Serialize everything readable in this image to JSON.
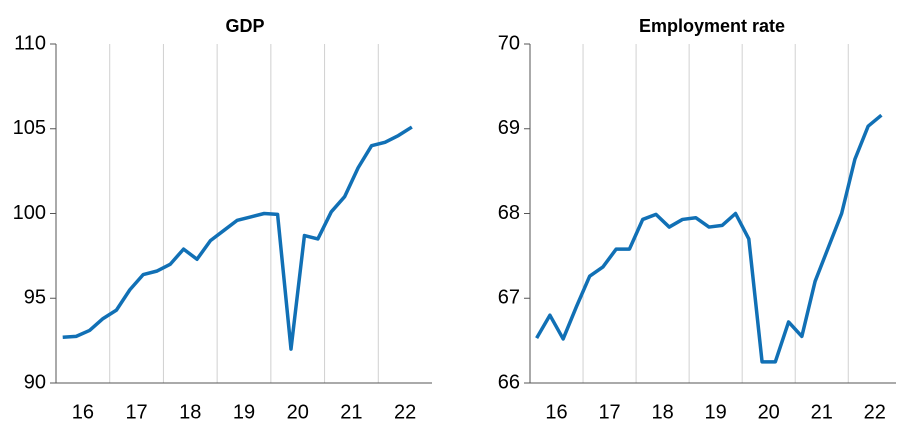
{
  "chart_data": [
    {
      "type": "line",
      "title": "GDP",
      "x": [
        2016.125,
        2016.375,
        2016.625,
        2016.875,
        2017.125,
        2017.375,
        2017.625,
        2017.875,
        2018.125,
        2018.375,
        2018.625,
        2018.875,
        2019.125,
        2019.375,
        2019.625,
        2019.875,
        2020.125,
        2020.375,
        2020.625,
        2020.875,
        2021.125,
        2021.375,
        2021.625,
        2021.875,
        2022.125,
        2022.375,
        2022.625
      ],
      "series": [
        {
          "name": "GDP",
          "color": "#1170b5",
          "values": [
            92.7,
            92.75,
            93.1,
            93.8,
            94.3,
            95.5,
            96.4,
            96.6,
            97.0,
            97.9,
            97.3,
            98.4,
            99.0,
            99.6,
            99.8,
            100.0,
            99.95,
            92.0,
            98.7,
            98.5,
            100.1,
            101.0,
            102.7,
            104.0,
            104.2,
            104.6,
            105.1
          ]
        }
      ],
      "xlim": [
        2016,
        2023
      ],
      "xticks": [
        {
          "value": 2016.5,
          "label": "16"
        },
        {
          "value": 2017.5,
          "label": "17"
        },
        {
          "value": 2018.5,
          "label": "18"
        },
        {
          "value": 2019.5,
          "label": "19"
        },
        {
          "value": 2020.5,
          "label": "20"
        },
        {
          "value": 2021.5,
          "label": "21"
        },
        {
          "value": 2022.5,
          "label": "22"
        }
      ],
      "xgrid": [
        2017,
        2018,
        2019,
        2020,
        2021,
        2022
      ],
      "ylim": [
        90,
        110
      ],
      "yticks": [
        90,
        95,
        100,
        105,
        110
      ]
    },
    {
      "type": "line",
      "title": "Employment rate",
      "x": [
        2016.125,
        2016.375,
        2016.625,
        2016.875,
        2017.125,
        2017.375,
        2017.625,
        2017.875,
        2018.125,
        2018.375,
        2018.625,
        2018.875,
        2019.125,
        2019.375,
        2019.625,
        2019.875,
        2020.125,
        2020.375,
        2020.625,
        2020.875,
        2021.125,
        2021.375,
        2021.625,
        2021.875,
        2022.125,
        2022.375,
        2022.625
      ],
      "series": [
        {
          "name": "Employment rate",
          "color": "#1170b5",
          "values": [
            66.53,
            66.8,
            66.52,
            66.9,
            67.26,
            67.37,
            67.58,
            67.58,
            67.93,
            67.99,
            67.84,
            67.93,
            67.95,
            67.84,
            67.86,
            68.0,
            67.7,
            66.25,
            66.25,
            66.72,
            66.55,
            67.2,
            67.6,
            68.0,
            68.64,
            69.03,
            69.16
          ]
        }
      ],
      "xlim": [
        2016,
        2022.9
      ],
      "xticks": [
        {
          "value": 2016.5,
          "label": "16"
        },
        {
          "value": 2017.5,
          "label": "17"
        },
        {
          "value": 2018.5,
          "label": "18"
        },
        {
          "value": 2019.5,
          "label": "19"
        },
        {
          "value": 2020.5,
          "label": "20"
        },
        {
          "value": 2021.5,
          "label": "21"
        },
        {
          "value": 2022.5,
          "label": "22"
        }
      ],
      "xgrid": [
        2017,
        2018,
        2019,
        2020,
        2021,
        2022
      ],
      "ylim": [
        66,
        70
      ],
      "yticks": [
        66,
        67,
        68,
        69,
        70
      ]
    }
  ]
}
